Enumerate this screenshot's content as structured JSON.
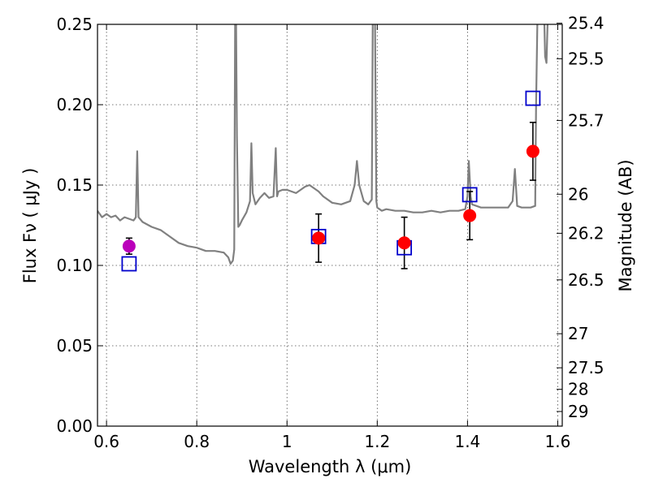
{
  "chart_data": {
    "type": "scatter",
    "title": "",
    "xlabel": "Wavelength  λ (μm)",
    "ylabel": "Flux  Fν  ( μJy )",
    "ylabel_right": "Magnitude (AB)",
    "xlim": [
      0.58,
      1.61
    ],
    "ylim": [
      0.0,
      0.25
    ],
    "grid": true,
    "x_ticks": [
      0.6,
      0.8,
      1.0,
      1.2,
      1.4,
      1.6
    ],
    "x_tick_labels": [
      "0.6",
      "0.8",
      "1",
      "1.2",
      "1.4",
      "1.6"
    ],
    "y_ticks": [
      0.0,
      0.05,
      0.1,
      0.15,
      0.2,
      0.25
    ],
    "y_tick_labels": [
      "0.00",
      "0.05",
      "0.10",
      "0.15",
      "0.20",
      "0.25"
    ],
    "magnitude_ticks": [
      {
        "label": "25.4",
        "flux": 0.2507
      },
      {
        "label": "25.5",
        "flux": 0.2286
      },
      {
        "label": "25.7",
        "flux": 0.1902
      },
      {
        "label": "26",
        "flux": 0.1443
      },
      {
        "label": "26.2",
        "flux": 0.12
      },
      {
        "label": "26.5",
        "flux": 0.091
      },
      {
        "label": "27",
        "flux": 0.0575
      },
      {
        "label": "27.5",
        "flux": 0.0363
      },
      {
        "label": "28",
        "flux": 0.0229
      },
      {
        "label": "29",
        "flux": 0.0091
      }
    ],
    "series": [
      {
        "kind": "spectrum",
        "color": "#808080",
        "x": [
          0.58,
          0.59,
          0.6,
          0.61,
          0.62,
          0.63,
          0.64,
          0.65,
          0.66,
          0.665,
          0.668,
          0.671,
          0.68,
          0.7,
          0.72,
          0.74,
          0.76,
          0.78,
          0.8,
          0.82,
          0.84,
          0.86,
          0.87,
          0.875,
          0.88,
          0.883,
          0.885,
          0.887,
          0.889,
          0.892,
          0.895,
          0.9,
          0.91,
          0.918,
          0.921,
          0.924,
          0.93,
          0.94,
          0.95,
          0.96,
          0.97,
          0.975,
          0.978,
          0.981,
          0.99,
          1.0,
          1.02,
          1.04,
          1.05,
          1.06,
          1.07,
          1.08,
          1.1,
          1.12,
          1.14,
          1.15,
          1.155,
          1.16,
          1.17,
          1.18,
          1.188,
          1.19,
          1.192,
          1.195,
          1.198,
          1.2,
          1.21,
          1.22,
          1.24,
          1.26,
          1.28,
          1.3,
          1.32,
          1.34,
          1.36,
          1.38,
          1.395,
          1.4,
          1.403,
          1.407,
          1.41,
          1.43,
          1.45,
          1.47,
          1.49,
          1.5,
          1.505,
          1.51,
          1.52,
          1.54,
          1.55,
          1.552,
          1.555,
          1.56,
          1.57,
          1.572,
          1.575,
          1.578,
          1.582,
          1.585
        ],
        "y": [
          0.134,
          0.13,
          0.132,
          0.13,
          0.131,
          0.128,
          0.13,
          0.129,
          0.128,
          0.13,
          0.171,
          0.13,
          0.127,
          0.124,
          0.122,
          0.118,
          0.114,
          0.112,
          0.111,
          0.109,
          0.109,
          0.108,
          0.105,
          0.101,
          0.103,
          0.11,
          0.255,
          0.255,
          0.18,
          0.124,
          0.125,
          0.128,
          0.133,
          0.14,
          0.176,
          0.145,
          0.138,
          0.142,
          0.145,
          0.142,
          0.143,
          0.173,
          0.143,
          0.146,
          0.147,
          0.147,
          0.145,
          0.149,
          0.15,
          0.148,
          0.146,
          0.143,
          0.139,
          0.138,
          0.14,
          0.15,
          0.165,
          0.15,
          0.14,
          0.138,
          0.141,
          0.255,
          0.255,
          0.255,
          0.14,
          0.136,
          0.134,
          0.135,
          0.134,
          0.134,
          0.133,
          0.133,
          0.134,
          0.133,
          0.134,
          0.134,
          0.135,
          0.143,
          0.165,
          0.143,
          0.138,
          0.136,
          0.136,
          0.136,
          0.136,
          0.14,
          0.16,
          0.137,
          0.136,
          0.136,
          0.137,
          0.2,
          0.255,
          0.255,
          0.255,
          0.23,
          0.226,
          0.255,
          0.255,
          0.255
        ]
      },
      {
        "kind": "model",
        "marker": "open-square",
        "color": "#0000cc",
        "x": [
          0.65,
          1.07,
          1.26,
          1.405,
          1.545
        ],
        "y": [
          0.101,
          0.118,
          0.111,
          0.144,
          0.204
        ]
      },
      {
        "kind": "observed",
        "marker": "filled-circle",
        "color": "#ff0000",
        "x": [
          1.07,
          1.26,
          1.405,
          1.545
        ],
        "y": [
          0.117,
          0.114,
          0.131,
          0.171
        ],
        "yerr": [
          0.015,
          0.016,
          0.015,
          0.018
        ]
      },
      {
        "kind": "observed-optical",
        "marker": "filled-circle",
        "color": "#bb00bb",
        "x": [
          0.65
        ],
        "y": [
          0.112
        ],
        "yerr": [
          0.005
        ]
      }
    ]
  }
}
